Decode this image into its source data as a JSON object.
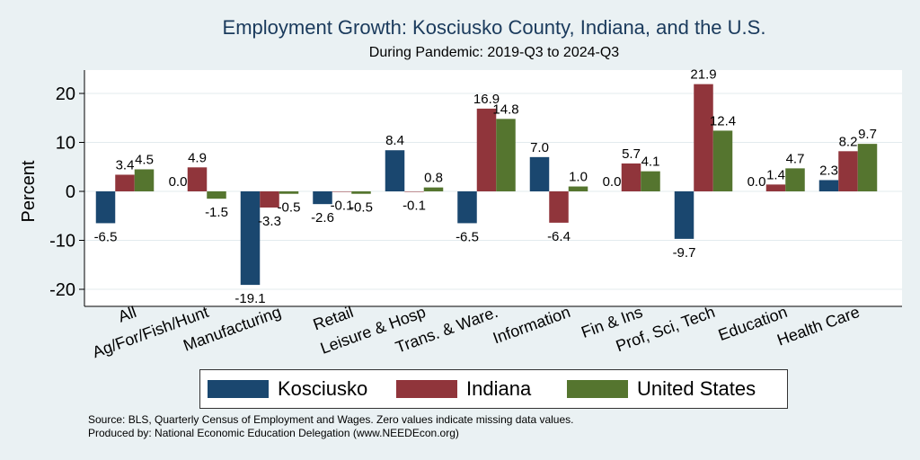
{
  "title": "Employment Growth: Kosciusko County, Indiana, and the U.S.",
  "subtitle": "During Pandemic: 2019-Q3 to 2024-Q3",
  "footnote": {
    "source": "Source: BLS, Quarterly Census of Employment and Wages. Zero values indicate missing data values.",
    "producer": "Produced by: National Economic Education Delegation (www.NEEDEcon.org)"
  },
  "chart_data": {
    "type": "bar",
    "ylabel": "Percent",
    "ylim": [
      -22,
      25
    ],
    "yticks": [
      -20,
      -10,
      0,
      10,
      20
    ],
    "categories": [
      "All",
      "Ag/For/Fish/Hunt",
      "Manufacturing",
      "Retail",
      "Leisure & Hosp",
      "Trans. & Ware.",
      "Information",
      "Fin & Ins",
      "Prof, Sci, Tech",
      "Education",
      "Health Care"
    ],
    "series": [
      {
        "name": "Kosciusko",
        "color": "#1a476f",
        "values": [
          -6.5,
          0.0,
          -19.1,
          -2.6,
          8.4,
          -6.5,
          7.0,
          0.0,
          -9.7,
          0.0,
          2.3
        ]
      },
      {
        "name": "Indiana",
        "color": "#90353b",
        "values": [
          3.4,
          4.9,
          -3.3,
          -0.1,
          -0.1,
          16.9,
          -6.4,
          5.7,
          21.9,
          1.4,
          8.2
        ]
      },
      {
        "name": "United States",
        "color": "#55752f",
        "values": [
          4.5,
          -1.5,
          -0.5,
          -0.5,
          0.8,
          14.8,
          1.0,
          4.1,
          12.4,
          4.7,
          9.7
        ]
      }
    ]
  }
}
